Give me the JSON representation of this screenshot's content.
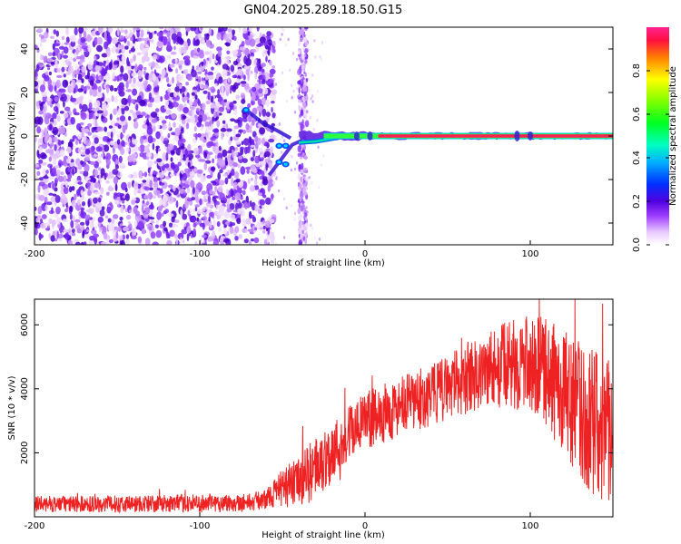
{
  "title": "GN04.2025.289.18.50.G15",
  "chart_data": [
    {
      "type": "heatmap",
      "xlabel": "Height of straight line (km)",
      "ylabel": "Frequency (Hz)",
      "xlim": [
        -200,
        150
      ],
      "ylim": [
        -50,
        50
      ],
      "xticks": [
        -200,
        -100,
        0,
        100
      ],
      "yticks": [
        -40,
        -20,
        0,
        20,
        40
      ],
      "colorbar": {
        "label": "Normalized spectral amplitude",
        "ticks": [
          0.0,
          0.2,
          0.4,
          0.6,
          0.8
        ],
        "range": [
          0,
          1
        ]
      },
      "features": {
        "noise_region_x": [
          -200,
          -55
        ],
        "scatter_column_x": [
          -40,
          -35
        ],
        "carrier_frequency_hz": 0,
        "carrier_start_x": -40,
        "carrier_end_x": 150
      }
    },
    {
      "type": "line",
      "xlabel": "Height of straight line (km)",
      "ylabel": "SNR (10 * v/v)",
      "xlim": [
        -200,
        150
      ],
      "ylim": [
        0,
        6800
      ],
      "xticks": [
        -200,
        -100,
        0,
        100
      ],
      "yticks": [
        2000,
        4000,
        6000
      ],
      "color": "#ee2222",
      "envelope": {
        "x": [
          -200,
          -150,
          -100,
          -70,
          -60,
          -50,
          -40,
          -30,
          -20,
          -10,
          0,
          20,
          40,
          60,
          80,
          100,
          110,
          120,
          130,
          140,
          150
        ],
        "y": [
          400,
          400,
          420,
          450,
          550,
          900,
          1100,
          1500,
          2000,
          2600,
          3000,
          3400,
          3800,
          4300,
          4700,
          4800,
          4500,
          3900,
          3300,
          2900,
          2700
        ]
      },
      "spread": {
        "x": [
          -200,
          -60,
          -50,
          -30,
          0,
          50,
          100,
          130,
          150
        ],
        "y": [
          250,
          300,
          600,
          1000,
          900,
          1000,
          1500,
          2200,
          2400
        ]
      }
    }
  ]
}
